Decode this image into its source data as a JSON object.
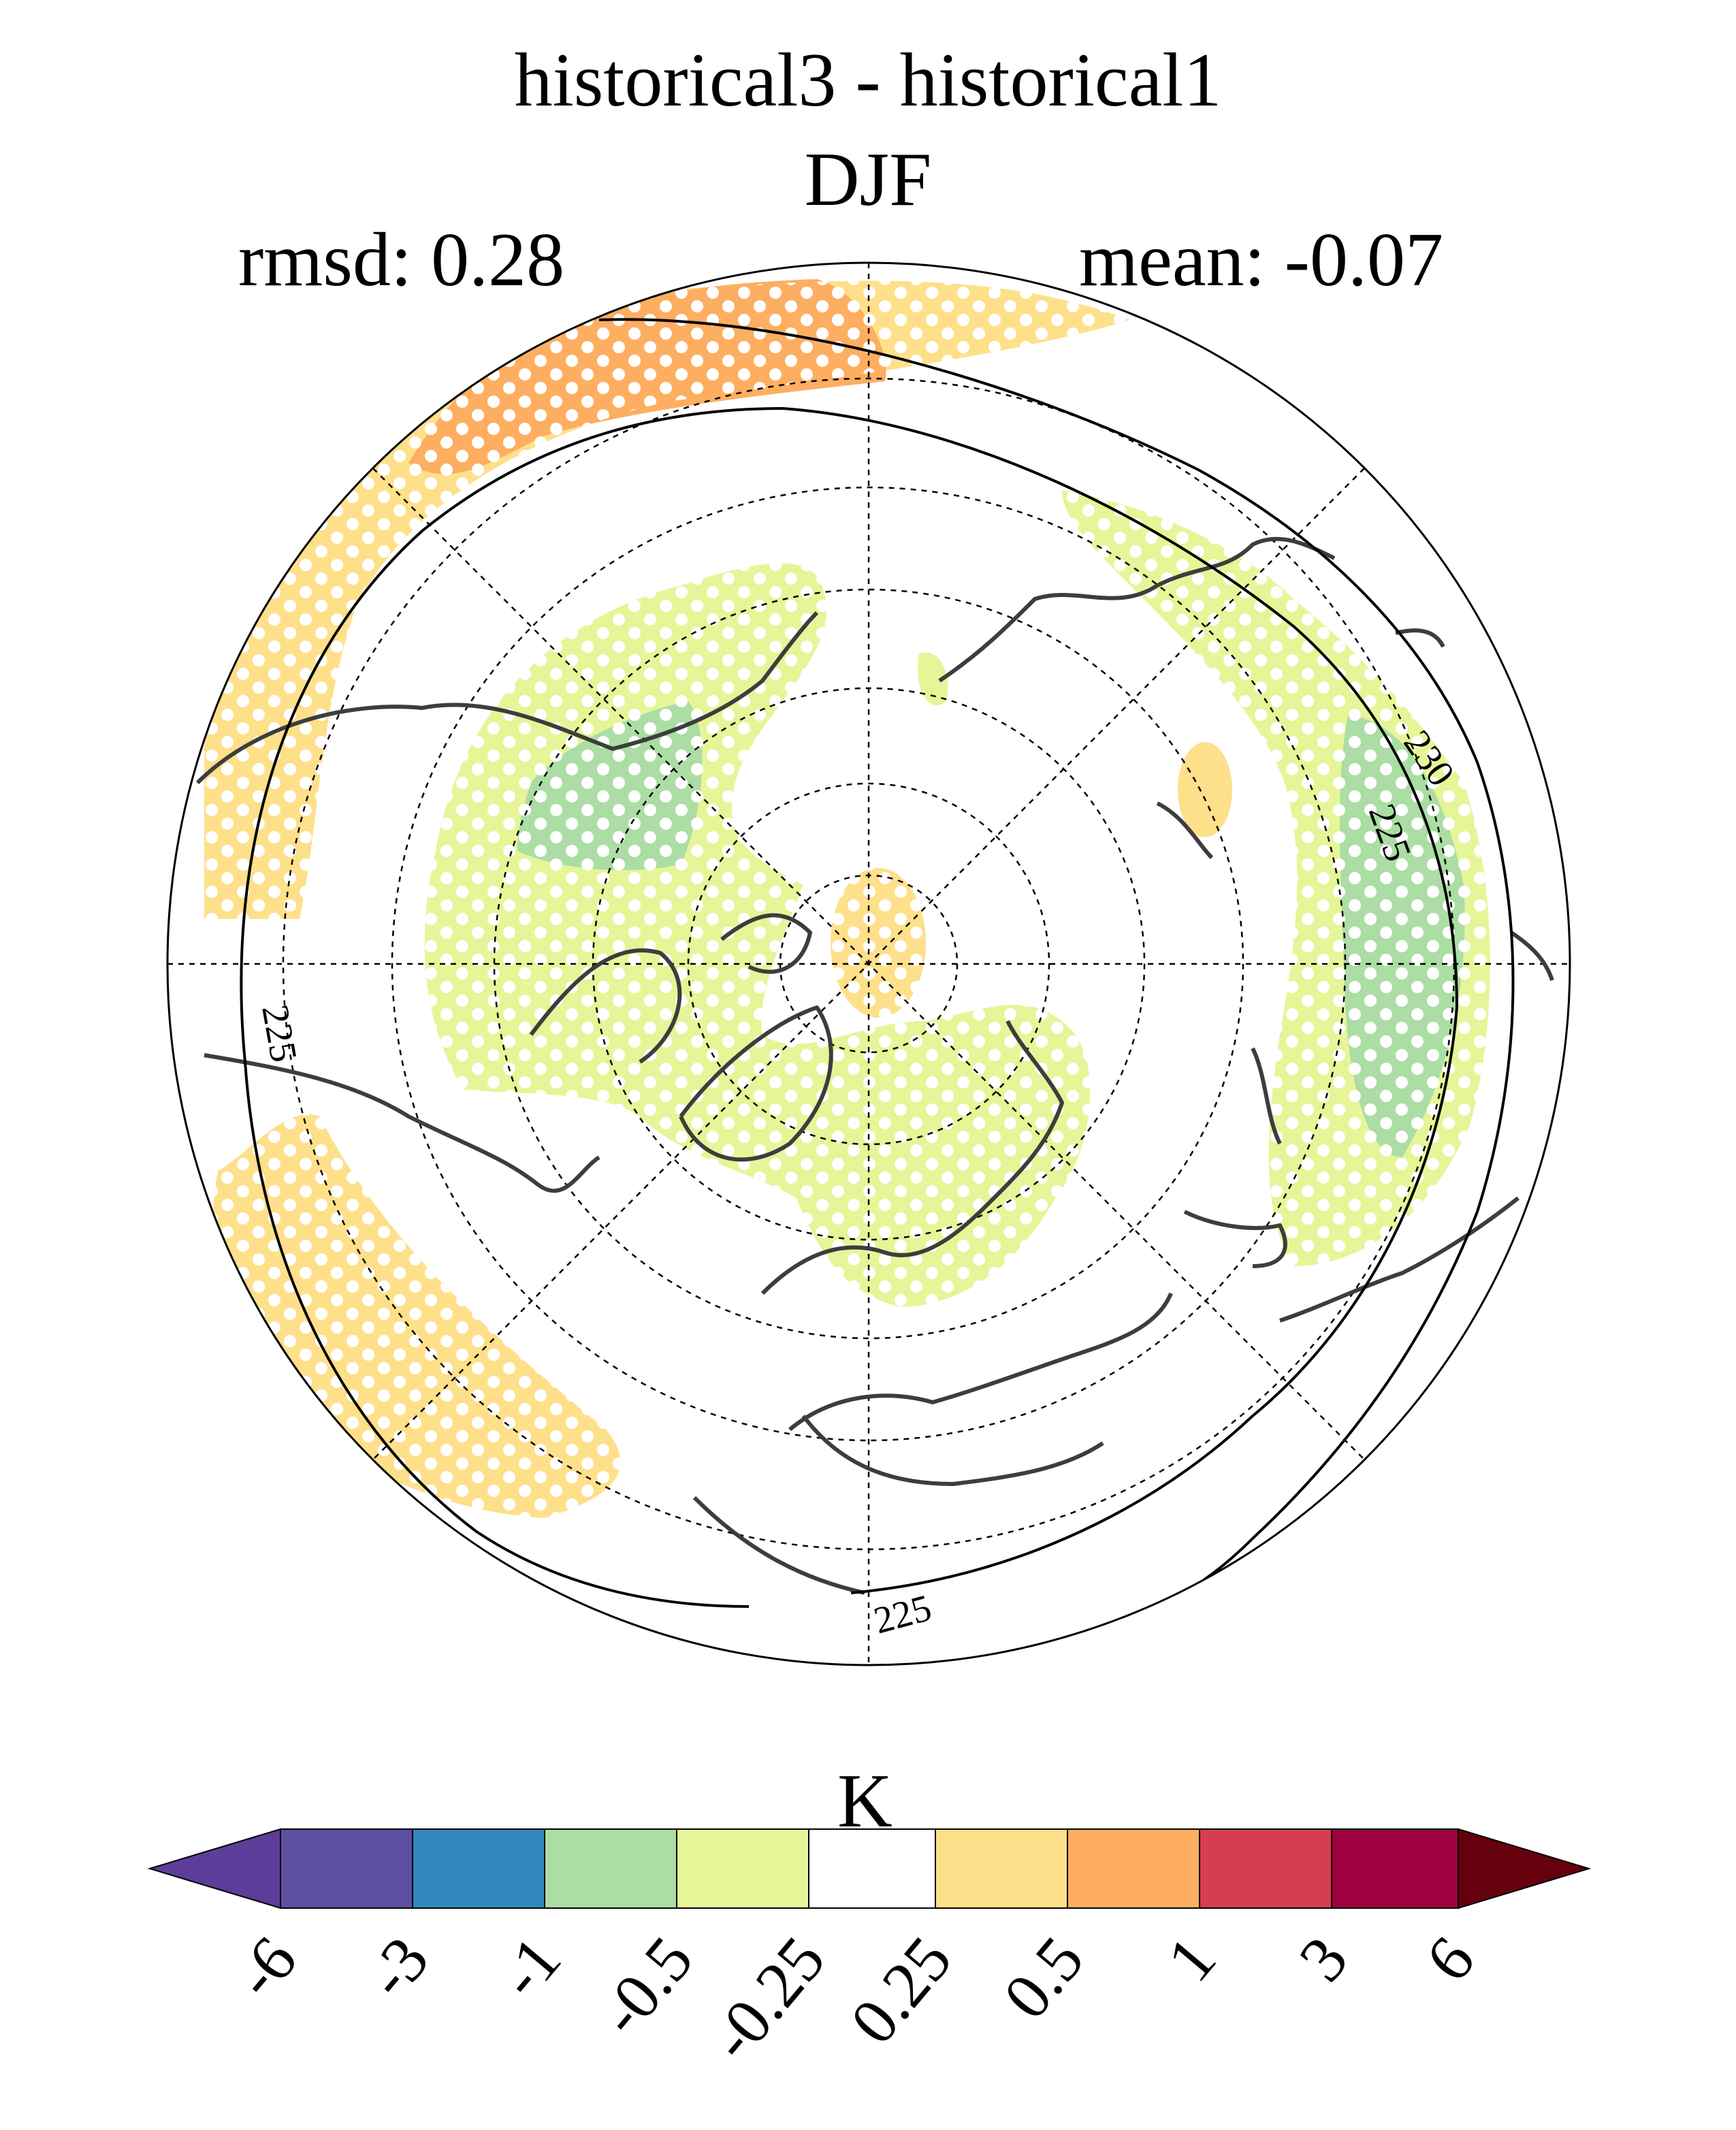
{
  "title": "historical3 - historical1",
  "subtitle": "DJF",
  "stats": {
    "rmsd": "rmsd: 0.28",
    "mean": "mean: -0.07"
  },
  "projection": "north-polar-stereographic",
  "contours": [
    {
      "value": "225",
      "label": "225"
    },
    {
      "value": "225",
      "label": "225"
    },
    {
      "value": "225",
      "label": "225"
    },
    {
      "value": "230",
      "label": "230"
    }
  ],
  "colorbar": {
    "units": "K",
    "colors": [
      "#5e3c99",
      "#5e4fa2",
      "#3288bd",
      "#abdda4",
      "#e6f598",
      "#ffffff",
      "#fee08b",
      "#fdae61",
      "#d53e4f",
      "#9e0142",
      "#67000d"
    ],
    "ticks": [
      "-6",
      "-3",
      "-1",
      "-0.5",
      "-0.25",
      "0.25",
      "0.5",
      "1",
      "3",
      "6"
    ]
  },
  "stippling": "white dots mark significant differences",
  "colors": {
    "coast": "#3d3d3d",
    "grid": "#000000"
  }
}
